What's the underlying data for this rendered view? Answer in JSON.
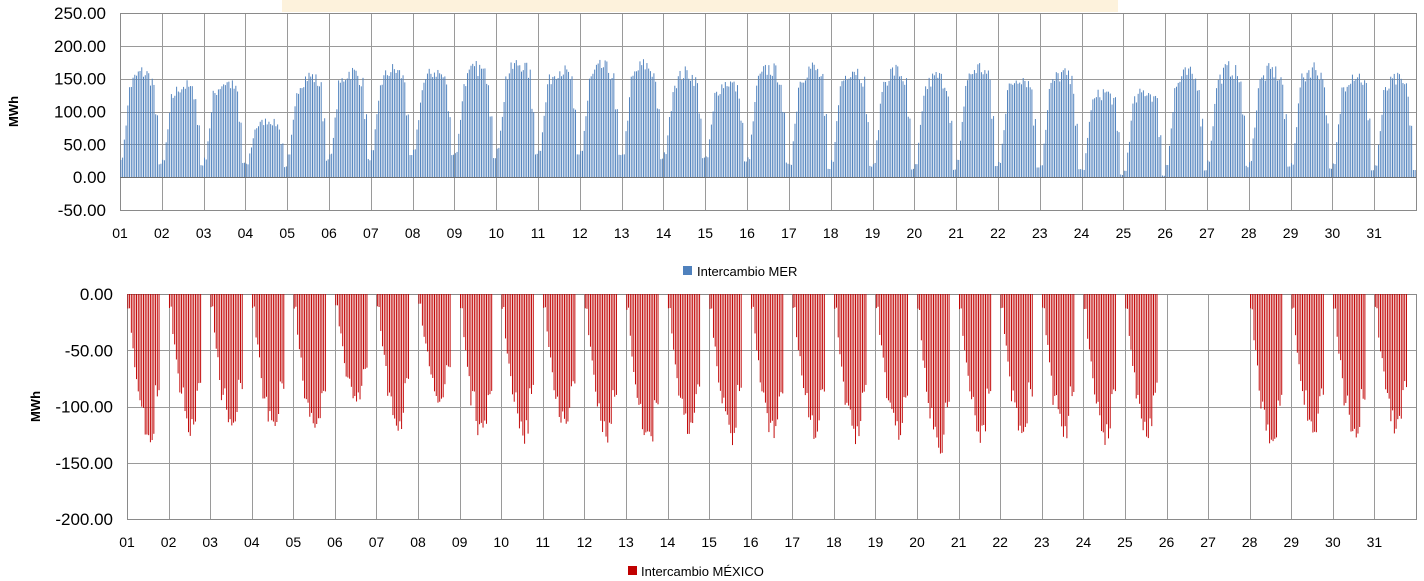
{
  "chart_data": [
    {
      "type": "bar",
      "ylabel": "MWh",
      "ylim": [
        -50,
        250
      ],
      "y_ticks": [
        "250.00",
        "200.00",
        "150.00",
        "100.00",
        "50.00",
        "0.00",
        "-50.00"
      ],
      "x_ticks": [
        "01",
        "02",
        "03",
        "04",
        "05",
        "06",
        "07",
        "08",
        "09",
        "10",
        "11",
        "12",
        "13",
        "14",
        "15",
        "16",
        "17",
        "18",
        "19",
        "20",
        "21",
        "22",
        "23",
        "24",
        "25",
        "26",
        "27",
        "28",
        "29",
        "30",
        "31"
      ],
      "grid": true,
      "legend_position": "bottom",
      "series": [
        {
          "name": "Intercambio MER",
          "color": "#4f81bd",
          "resolution": "hourly",
          "daily_peak": [
            172,
            150,
            155,
            92,
            165,
            172,
            175,
            172,
            178,
            185,
            175,
            180,
            183,
            170,
            155,
            178,
            180,
            178,
            175,
            165,
            180,
            165,
            170,
            140,
            142,
            170,
            178,
            175,
            180,
            170,
            160
          ],
          "daily_trough": [
            5,
            5,
            8,
            8,
            12,
            12,
            18,
            20,
            15,
            20,
            20,
            18,
            12,
            15,
            10,
            5,
            -5,
            0,
            -5,
            -5,
            0,
            0,
            -5,
            -10,
            -12,
            -5,
            0,
            0,
            -5,
            -5,
            -5
          ],
          "note_values": "hourly values follow each day's trough-to-peak profile"
        }
      ]
    },
    {
      "type": "bar",
      "ylabel": "MWh",
      "ylim": [
        -200,
        0
      ],
      "y_ticks": [
        "0.00",
        "-50.00",
        "-100.00",
        "-150.00",
        "-200.00"
      ],
      "x_ticks": [
        "01",
        "02",
        "03",
        "04",
        "05",
        "06",
        "07",
        "08",
        "09",
        "10",
        "11",
        "12",
        "13",
        "14",
        "15",
        "16",
        "17",
        "18",
        "19",
        "20",
        "21",
        "22",
        "23",
        "24",
        "25",
        "26",
        "27",
        "28",
        "29",
        "30",
        "31"
      ],
      "grid": true,
      "legend_position": "bottom",
      "series": [
        {
          "name": "Intercambio MÉXICO",
          "color": "#c00000",
          "resolution": "hourly",
          "daily_min": [
            -135,
            -130,
            -128,
            -130,
            -130,
            -103,
            -125,
            -100,
            -135,
            -135,
            -125,
            -135,
            -142,
            -130,
            -135,
            -132,
            -130,
            -135,
            -132,
            -148,
            -135,
            -132,
            -132,
            -135,
            -132,
            0,
            0,
            -146,
            -132,
            -135,
            -130
          ]
        }
      ]
    }
  ]
}
